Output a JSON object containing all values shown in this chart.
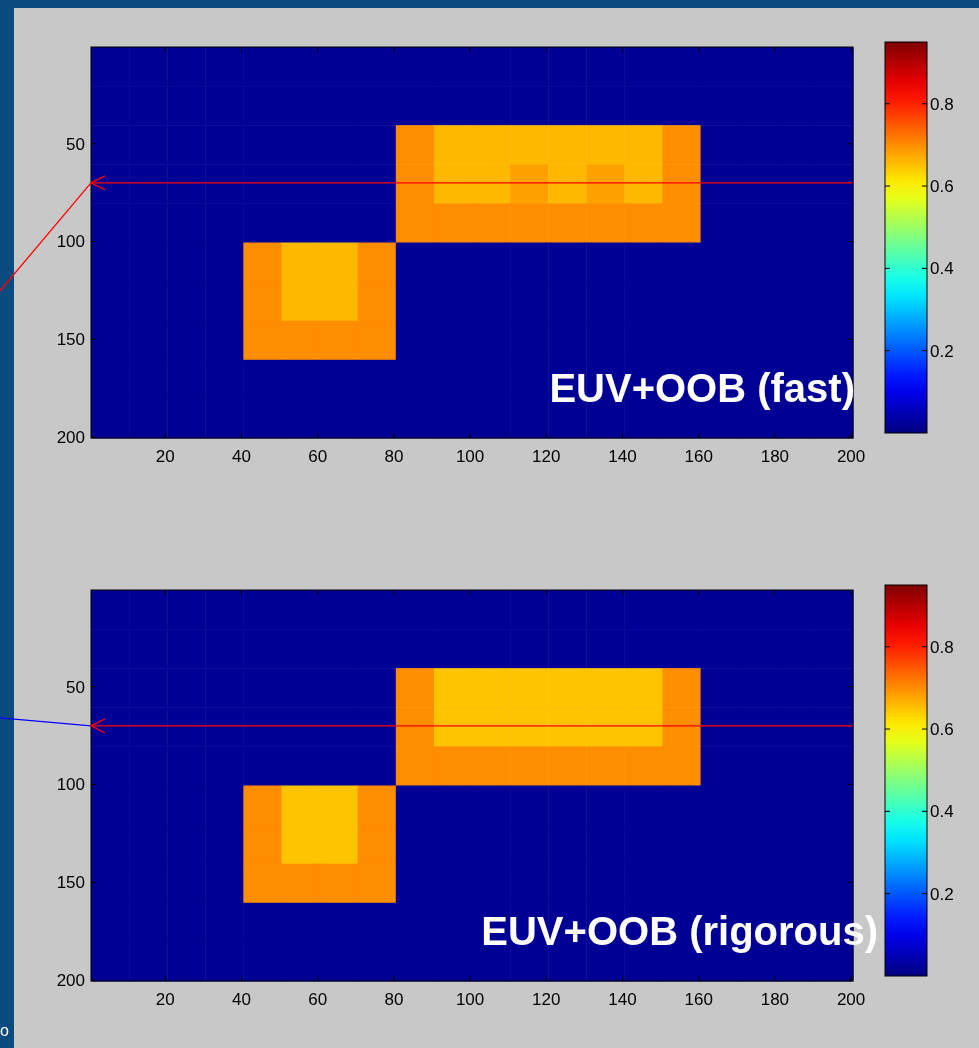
{
  "chart_data": [
    {
      "type": "heatmap",
      "xlim": [
        0.5,
        200.5
      ],
      "xticks": [
        20,
        40,
        60,
        80,
        100,
        120,
        140,
        160,
        180,
        200
      ],
      "ylim": [
        200.5,
        0.5
      ],
      "yticks": [
        50,
        100,
        150,
        200
      ],
      "clim": [
        0,
        0.95
      ],
      "cticks": [
        0.2,
        0.4,
        0.6,
        0.8
      ],
      "annotations": [
        "EUV+OOB (fast)"
      ],
      "ref_lines": [
        {
          "axis": "y",
          "value": 70,
          "color": "#ff0000"
        }
      ],
      "cells": [
        [
          0.02,
          0.02,
          0.02,
          0.02,
          0.02,
          0.02,
          0.02,
          0.02,
          0.02,
          0.02,
          0.02,
          0.02,
          0.02,
          0.02,
          0.02,
          0.02,
          0.02,
          0.02,
          0.02,
          0.02
        ],
        [
          0.02,
          0.02,
          0.02,
          0.02,
          0.02,
          0.02,
          0.02,
          0.02,
          0.02,
          0.02,
          0.02,
          0.02,
          0.02,
          0.02,
          0.02,
          0.02,
          0.02,
          0.02,
          0.02,
          0.02
        ],
        [
          0.02,
          0.02,
          0.02,
          0.02,
          0.02,
          0.02,
          0.02,
          0.02,
          0.7,
          0.66,
          0.66,
          0.66,
          0.66,
          0.66,
          0.66,
          0.7,
          0.02,
          0.02,
          0.02,
          0.02
        ],
        [
          0.02,
          0.02,
          0.02,
          0.02,
          0.02,
          0.02,
          0.02,
          0.02,
          0.7,
          0.66,
          0.66,
          0.68,
          0.66,
          0.68,
          0.66,
          0.7,
          0.02,
          0.02,
          0.02,
          0.02
        ],
        [
          0.02,
          0.02,
          0.02,
          0.02,
          0.02,
          0.02,
          0.02,
          0.02,
          0.7,
          0.7,
          0.7,
          0.7,
          0.7,
          0.7,
          0.7,
          0.7,
          0.02,
          0.02,
          0.02,
          0.02
        ],
        [
          0.02,
          0.02,
          0.02,
          0.02,
          0.7,
          0.66,
          0.66,
          0.7,
          0.02,
          0.02,
          0.02,
          0.02,
          0.02,
          0.02,
          0.02,
          0.02,
          0.02,
          0.02,
          0.02,
          0.02
        ],
        [
          0.02,
          0.02,
          0.02,
          0.02,
          0.7,
          0.66,
          0.66,
          0.7,
          0.02,
          0.02,
          0.02,
          0.02,
          0.02,
          0.02,
          0.02,
          0.02,
          0.02,
          0.02,
          0.02,
          0.02
        ],
        [
          0.02,
          0.02,
          0.02,
          0.02,
          0.7,
          0.7,
          0.7,
          0.7,
          0.02,
          0.02,
          0.02,
          0.02,
          0.02,
          0.02,
          0.02,
          0.02,
          0.02,
          0.02,
          0.02,
          0.02
        ],
        [
          0.02,
          0.02,
          0.02,
          0.02,
          0.02,
          0.02,
          0.02,
          0.02,
          0.02,
          0.02,
          0.02,
          0.02,
          0.02,
          0.02,
          0.02,
          0.02,
          0.02,
          0.02,
          0.02,
          0.02
        ],
        [
          0.02,
          0.02,
          0.02,
          0.02,
          0.02,
          0.02,
          0.02,
          0.02,
          0.02,
          0.02,
          0.02,
          0.02,
          0.02,
          0.02,
          0.02,
          0.02,
          0.02,
          0.02,
          0.02,
          0.02
        ]
      ]
    },
    {
      "type": "heatmap",
      "xlim": [
        0.5,
        200.5
      ],
      "xticks": [
        20,
        40,
        60,
        80,
        100,
        120,
        140,
        160,
        180,
        200
      ],
      "ylim": [
        200.5,
        0.5
      ],
      "yticks": [
        50,
        100,
        150,
        200
      ],
      "clim": [
        0,
        0.95
      ],
      "cticks": [
        0.2,
        0.4,
        0.6,
        0.8
      ],
      "annotations": [
        "EUV+OOB (rigorous)",
        "o"
      ],
      "ref_lines": [
        {
          "axis": "y",
          "value": 70,
          "color": "#ff0000"
        }
      ],
      "cells": [
        [
          0.02,
          0.02,
          0.02,
          0.02,
          0.02,
          0.02,
          0.02,
          0.02,
          0.02,
          0.02,
          0.02,
          0.02,
          0.02,
          0.02,
          0.02,
          0.02,
          0.02,
          0.02,
          0.02,
          0.02
        ],
        [
          0.02,
          0.02,
          0.02,
          0.02,
          0.02,
          0.02,
          0.02,
          0.02,
          0.02,
          0.02,
          0.02,
          0.02,
          0.02,
          0.02,
          0.02,
          0.02,
          0.02,
          0.02,
          0.02,
          0.02
        ],
        [
          0.02,
          0.02,
          0.02,
          0.02,
          0.02,
          0.02,
          0.02,
          0.02,
          0.7,
          0.65,
          0.65,
          0.65,
          0.65,
          0.65,
          0.65,
          0.7,
          0.02,
          0.02,
          0.02,
          0.02
        ],
        [
          0.02,
          0.02,
          0.02,
          0.02,
          0.02,
          0.02,
          0.02,
          0.02,
          0.7,
          0.65,
          0.65,
          0.65,
          0.65,
          0.65,
          0.65,
          0.7,
          0.02,
          0.02,
          0.02,
          0.02
        ],
        [
          0.02,
          0.02,
          0.02,
          0.02,
          0.02,
          0.02,
          0.02,
          0.02,
          0.7,
          0.7,
          0.7,
          0.7,
          0.7,
          0.7,
          0.7,
          0.7,
          0.02,
          0.02,
          0.02,
          0.02
        ],
        [
          0.02,
          0.02,
          0.02,
          0.02,
          0.7,
          0.65,
          0.65,
          0.7,
          0.02,
          0.02,
          0.02,
          0.02,
          0.02,
          0.02,
          0.02,
          0.02,
          0.02,
          0.02,
          0.02,
          0.02
        ],
        [
          0.02,
          0.02,
          0.02,
          0.02,
          0.7,
          0.65,
          0.65,
          0.7,
          0.02,
          0.02,
          0.02,
          0.02,
          0.02,
          0.02,
          0.02,
          0.02,
          0.02,
          0.02,
          0.02,
          0.02
        ],
        [
          0.02,
          0.02,
          0.02,
          0.02,
          0.7,
          0.7,
          0.7,
          0.7,
          0.02,
          0.02,
          0.02,
          0.02,
          0.02,
          0.02,
          0.02,
          0.02,
          0.02,
          0.02,
          0.02,
          0.02
        ],
        [
          0.02,
          0.02,
          0.02,
          0.02,
          0.02,
          0.02,
          0.02,
          0.02,
          0.02,
          0.02,
          0.02,
          0.02,
          0.02,
          0.02,
          0.02,
          0.02,
          0.02,
          0.02,
          0.02,
          0.02
        ],
        [
          0.02,
          0.02,
          0.02,
          0.02,
          0.02,
          0.02,
          0.02,
          0.02,
          0.02,
          0.02,
          0.02,
          0.02,
          0.02,
          0.02,
          0.02,
          0.02,
          0.02,
          0.02,
          0.02,
          0.02
        ]
      ]
    }
  ]
}
